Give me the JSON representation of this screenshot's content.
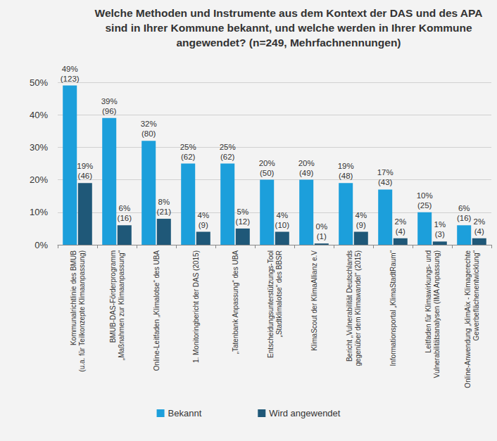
{
  "chart_data": {
    "type": "bar",
    "title": "Welche Methoden und Instrumente aus dem Kontext der DAS und des APA sind in Ihrer Kommune bekannt, und welche werden in Ihrer Kommune angewendet? (n=249, Mehrfachnennungen)",
    "categories": [
      "Kommunalrichtlinie des BMUB\n(u.a. für Teilkonzepte Klimaanpassung)",
      "BMUB-DAS-Förderprogramm\n„Maßnahmen zur Klimaanpassung“",
      "Online-Leitfaden „Klimalotse“ des UBA",
      "1. Monitoringbericht der DAS (2015)",
      "„Tatenbank Anpassung“ des UBA",
      "Entscheidungsunterstützungs-Tool\n„Stadtklimalotse“ des BBSR",
      "KlimaScout der KlimaAllianz e.V",
      "Bericht „Vulnerabilität Deutschlands\ngegenüber dem Klimawandel“ (2015)",
      "Informationsportal „KlimaStadtRaum“",
      "Leitfaden für Klimawirkungs- und\nVulnerabilitätsanalysen (IMA Anpassung)",
      "Online-Anwendung „klimAix - Klimagerechte\nGewerbeflächenentwicklung“"
    ],
    "series": [
      {
        "name": "Bekannt",
        "color": "#1c9fdb",
        "values": [
          49,
          39,
          32,
          25,
          25,
          20,
          20,
          19,
          17,
          10,
          6
        ],
        "value_labels": [
          "49%\n(123)",
          "39%\n(96)",
          "32%\n(80)",
          "25%\n(62)",
          "25%\n(62)",
          "20%\n(50)",
          "20%\n(49)",
          "19%\n(48)",
          "17%\n(43)",
          "10%\n(25)",
          "6%\n(16)"
        ]
      },
      {
        "name": "Wird angewendet",
        "color": "#1f5878",
        "values": [
          19,
          6,
          8,
          4,
          5,
          4,
          0.4,
          4,
          2,
          1,
          2
        ],
        "value_labels": [
          "19%\n(46)",
          "6%\n(16)",
          "8%\n(21)",
          "4%\n(9)",
          "5%\n(12)",
          "4%\n(10)",
          "0%\n(1)",
          "4%\n(9)",
          "2%\n(4)",
          "1%\n(3)",
          "2%\n(4)"
        ]
      }
    ],
    "ylim": [
      0,
      50
    ],
    "yticks": [
      {
        "value": 0,
        "label": "0%"
      },
      {
        "value": 10,
        "label": "10%"
      },
      {
        "value": 20,
        "label": "20%"
      },
      {
        "value": 30,
        "label": "30%"
      },
      {
        "value": 40,
        "label": "40%"
      },
      {
        "value": 50,
        "label": "50%"
      }
    ],
    "grid": true,
    "legend": "bottom",
    "data_labels": true
  }
}
